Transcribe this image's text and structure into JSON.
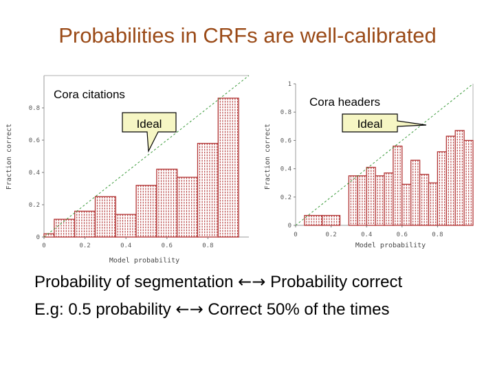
{
  "slide": {
    "title": "Probabilities in CRFs are well-calibrated",
    "line1": {
      "left": "Probability of segmentation",
      "arrow": "←→",
      "right": "Probability correct"
    },
    "line2": {
      "left": "E.g: 0.5 probability",
      "arrow": "←→",
      "right": "Correct 50% of the times"
    }
  },
  "colors": {
    "title": "#9a4a17",
    "bar": "#b03030",
    "ideal_line": "#3a9a3a",
    "callout_fill": "#f6f6c4"
  },
  "chart_data": [
    {
      "type": "bar",
      "title": "Cora citations",
      "xlabel": "Model probability",
      "ylabel": "Fraction correct",
      "xlim": [
        0,
        1
      ],
      "ylim": [
        0,
        1
      ],
      "xticks": [
        "0",
        "0.2",
        "0.4",
        "0.6",
        "0.8"
      ],
      "yticks": [
        "0",
        "0.2",
        "0.4",
        "0.6",
        "0.8"
      ],
      "bins": [
        {
          "x0": 0.0,
          "x1": 0.05,
          "value": 0.02
        },
        {
          "x0": 0.05,
          "x1": 0.15,
          "value": 0.11
        },
        {
          "x0": 0.15,
          "x1": 0.25,
          "value": 0.16
        },
        {
          "x0": 0.25,
          "x1": 0.35,
          "value": 0.25
        },
        {
          "x0": 0.35,
          "x1": 0.45,
          "value": 0.14
        },
        {
          "x0": 0.45,
          "x1": 0.55,
          "value": 0.32
        },
        {
          "x0": 0.55,
          "x1": 0.65,
          "value": 0.42
        },
        {
          "x0": 0.65,
          "x1": 0.75,
          "value": 0.37
        },
        {
          "x0": 0.75,
          "x1": 0.85,
          "value": 0.58
        },
        {
          "x0": 0.85,
          "x1": 0.95,
          "value": 0.86
        }
      ],
      "annotation": "Ideal"
    },
    {
      "type": "bar",
      "title": "Cora headers",
      "xlabel": "Model probability",
      "ylabel": "Fraction correct",
      "xlim": [
        0,
        1
      ],
      "ylim": [
        0,
        1
      ],
      "xticks": [
        "0",
        "0.2",
        "0.4",
        "0.6",
        "0.8"
      ],
      "yticks": [
        "0",
        "0.2",
        "0.4",
        "0.6",
        "0.8",
        "1"
      ],
      "bins": [
        {
          "x0": 0.05,
          "x1": 0.15,
          "value": 0.07
        },
        {
          "x0": 0.15,
          "x1": 0.25,
          "value": 0.07
        },
        {
          "x0": 0.3,
          "x1": 0.35,
          "value": 0.35
        },
        {
          "x0": 0.35,
          "x1": 0.4,
          "value": 0.35
        },
        {
          "x0": 0.4,
          "x1": 0.45,
          "value": 0.41
        },
        {
          "x0": 0.45,
          "x1": 0.5,
          "value": 0.35
        },
        {
          "x0": 0.5,
          "x1": 0.55,
          "value": 0.37
        },
        {
          "x0": 0.55,
          "x1": 0.6,
          "value": 0.56
        },
        {
          "x0": 0.6,
          "x1": 0.65,
          "value": 0.29
        },
        {
          "x0": 0.65,
          "x1": 0.7,
          "value": 0.46
        },
        {
          "x0": 0.7,
          "x1": 0.75,
          "value": 0.36
        },
        {
          "x0": 0.75,
          "x1": 0.8,
          "value": 0.3
        },
        {
          "x0": 0.8,
          "x1": 0.85,
          "value": 0.52
        },
        {
          "x0": 0.85,
          "x1": 0.9,
          "value": 0.63
        },
        {
          "x0": 0.9,
          "x1": 0.95,
          "value": 0.67
        },
        {
          "x0": 0.95,
          "x1": 1.0,
          "value": 0.6
        }
      ],
      "annotation": "Ideal"
    }
  ]
}
